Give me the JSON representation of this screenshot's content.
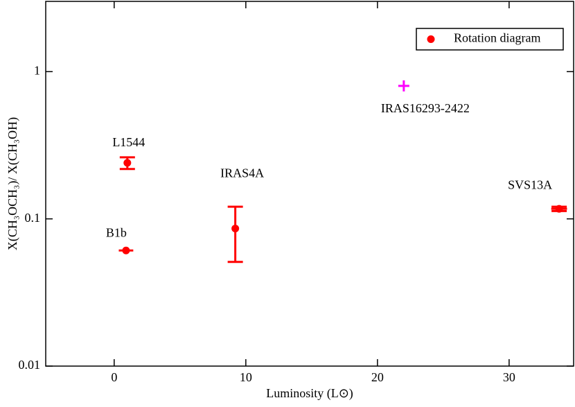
{
  "chart_data": {
    "type": "scatter",
    "xlabel": "Luminosity (L⊙)",
    "ylabel": "X(CH₃OCH₃)/ X(CH₃OH)",
    "xlim": [
      -5.2,
      34.9
    ],
    "xticks": [
      0,
      10,
      20,
      30
    ],
    "ylim": [
      0.01,
      3
    ],
    "yticks": [
      0.01,
      0.1,
      1
    ],
    "ylog": true,
    "legend": "upper right",
    "series": [
      {
        "name": "Rotation diagram",
        "color": "#ff0000",
        "marker": "circle",
        "labels": [
          "B1b",
          "L1544",
          "IRAS4A",
          "SVS13A"
        ],
        "x": [
          0.9,
          1.0,
          9.2,
          33.8
        ],
        "values": [
          0.061,
          0.24,
          0.086,
          0.117
        ],
        "yerr": [
          null,
          0.022,
          0.035,
          0.004
        ],
        "xerr": [
          0.55,
          null,
          null,
          0.6
        ]
      },
      {
        "color": "#ff00ff",
        "marker": "plus",
        "labels": [
          "IRAS16293-2422"
        ],
        "x": [
          22
        ],
        "values": [
          0.8
        ]
      }
    ]
  }
}
